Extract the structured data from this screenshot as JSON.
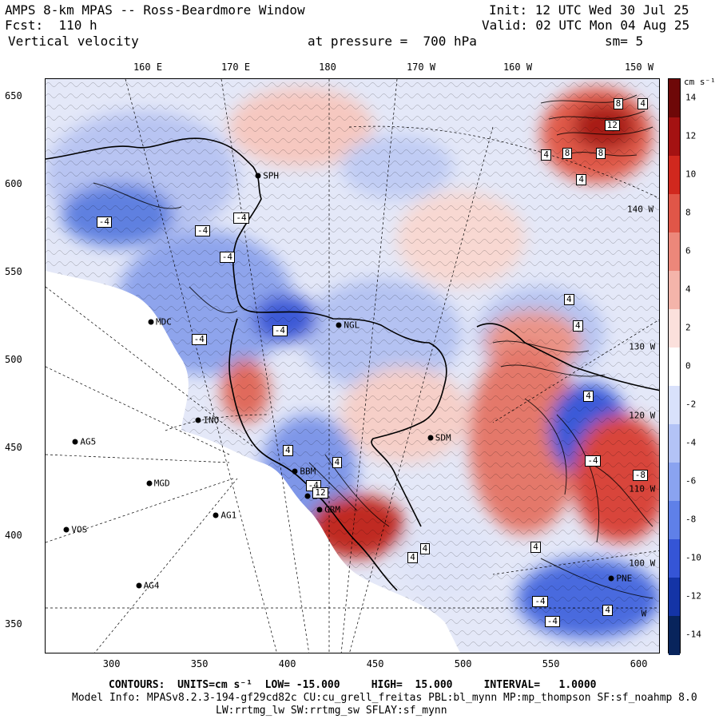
{
  "header": {
    "model_title": "AMPS 8-km MPAS -- Ross-Beardmore Window",
    "forecast": "Fcst:  110 h",
    "field": "Vertical velocity",
    "init": "Init: 12 UTC Wed 30 Jul 25",
    "valid": "Valid: 02 UTC Mon 04 Aug 25",
    "pressure": "at pressure =  700 hPa",
    "smoothing": "sm= 5"
  },
  "axes": {
    "top_longitudes": [
      "160 E",
      "170 E",
      "180",
      "170 W",
      "160 W",
      "150 W"
    ],
    "left_y": [
      "650",
      "600",
      "550",
      "500",
      "450",
      "400",
      "350"
    ],
    "bottom_x": [
      "300",
      "350",
      "400",
      "450",
      "500",
      "550",
      "600"
    ],
    "xlim": [
      262,
      612
    ],
    "ylim": [
      333,
      660
    ]
  },
  "stations": [
    {
      "id": "MDC",
      "x": 322,
      "y": 522
    },
    {
      "id": "NGL",
      "x": 429,
      "y": 520
    },
    {
      "id": "SPH",
      "x": 383,
      "y": 605
    },
    {
      "id": "INO",
      "x": 349,
      "y": 466
    },
    {
      "id": "AG5",
      "x": 279,
      "y": 454
    },
    {
      "id": "MGD",
      "x": 321,
      "y": 430
    },
    {
      "id": "BBM",
      "x": 404,
      "y": 437
    },
    {
      "id": "LTM",
      "x": 411,
      "y": 423
    },
    {
      "id": "GRM",
      "x": 418,
      "y": 415
    },
    {
      "id": "AG1",
      "x": 359,
      "y": 412
    },
    {
      "id": "VOS",
      "x": 274,
      "y": 404
    },
    {
      "id": "AG4",
      "x": 315,
      "y": 372
    },
    {
      "id": "SDM",
      "x": 481,
      "y": 456
    },
    {
      "id": "PNE",
      "x": 584,
      "y": 376
    }
  ],
  "lon_overlay_labels": [
    {
      "text": "140 W",
      "x": 602,
      "y": 586
    },
    {
      "text": "130 W",
      "x": 603,
      "y": 508
    },
    {
      "text": "120 W",
      "x": 603,
      "y": 469
    },
    {
      "text": "110 W",
      "x": 603,
      "y": 427
    },
    {
      "text": "100 W",
      "x": 603,
      "y": 385
    },
    {
      "text": "W",
      "x": 610,
      "y": 356
    }
  ],
  "contour_labels": [
    {
      "text": "-4",
      "x": 291,
      "y": 582
    },
    {
      "text": "-4",
      "x": 347,
      "y": 577
    },
    {
      "text": "-4",
      "x": 369,
      "y": 584
    },
    {
      "text": "-4",
      "x": 361,
      "y": 562
    },
    {
      "text": "-4",
      "x": 391,
      "y": 520
    },
    {
      "text": "-4",
      "x": 345,
      "y": 515
    },
    {
      "text": "4",
      "x": 397,
      "y": 452
    },
    {
      "text": "4",
      "x": 425,
      "y": 445
    },
    {
      "text": "-4",
      "x": 410,
      "y": 432
    },
    {
      "text": "12",
      "x": 414,
      "y": 428
    },
    {
      "text": "4",
      "x": 468,
      "y": 391
    },
    {
      "text": "4",
      "x": 475,
      "y": 396
    },
    {
      "text": "4",
      "x": 544,
      "y": 620
    },
    {
      "text": "8",
      "x": 556,
      "y": 621
    },
    {
      "text": "8",
      "x": 575,
      "y": 621
    },
    {
      "text": "12",
      "x": 580,
      "y": 637
    },
    {
      "text": "4",
      "x": 564,
      "y": 606
    },
    {
      "text": "4",
      "x": 599,
      "y": 649
    },
    {
      "text": "8",
      "x": 585,
      "y": 649
    },
    {
      "text": "4",
      "x": 557,
      "y": 538
    },
    {
      "text": "4",
      "x": 562,
      "y": 523
    },
    {
      "text": "4",
      "x": 568,
      "y": 483
    },
    {
      "text": "-4",
      "x": 569,
      "y": 446
    },
    {
      "text": "-8",
      "x": 596,
      "y": 438
    },
    {
      "text": "4",
      "x": 538,
      "y": 397
    },
    {
      "text": "-4",
      "x": 539,
      "y": 366
    },
    {
      "text": "4",
      "x": 579,
      "y": 361
    },
    {
      "text": "-4",
      "x": 546,
      "y": 355
    }
  ],
  "footer": {
    "contours_line": "CONTOURS:  UNITS=cm s⁻¹  LOW= -15.000     HIGH=  15.000     INTERVAL=   1.0000",
    "model_info": "Model Info: MPASv8.2.3-194-gf29cd82c CU:cu_grell_freitas PBL:bl_mynn MP:mp_thompson SF:sf_noahmp 8.0",
    "physics": "LW:rrtmg_lw SW:rrtmg_sw SFLAY:sf_mynn"
  },
  "colorbar": {
    "unit": "cm s⁻¹",
    "range": [
      -15,
      15
    ],
    "labels": [
      "14",
      "12",
      "10",
      "8",
      "6",
      "4",
      "2",
      "0",
      "-2",
      "-4",
      "-6",
      "-8",
      "-10",
      "-12",
      "-14"
    ],
    "colors": [
      "#08245c",
      "#1434a6",
      "#3555d6",
      "#5f80e8",
      "#8aa3f0",
      "#b3c3f6",
      "#d9e1fb",
      "#ffffff",
      "#fbe0dc",
      "#f4b4aa",
      "#ec877a",
      "#e05648",
      "#d0281e",
      "#a41212",
      "#6e0808"
    ]
  }
}
